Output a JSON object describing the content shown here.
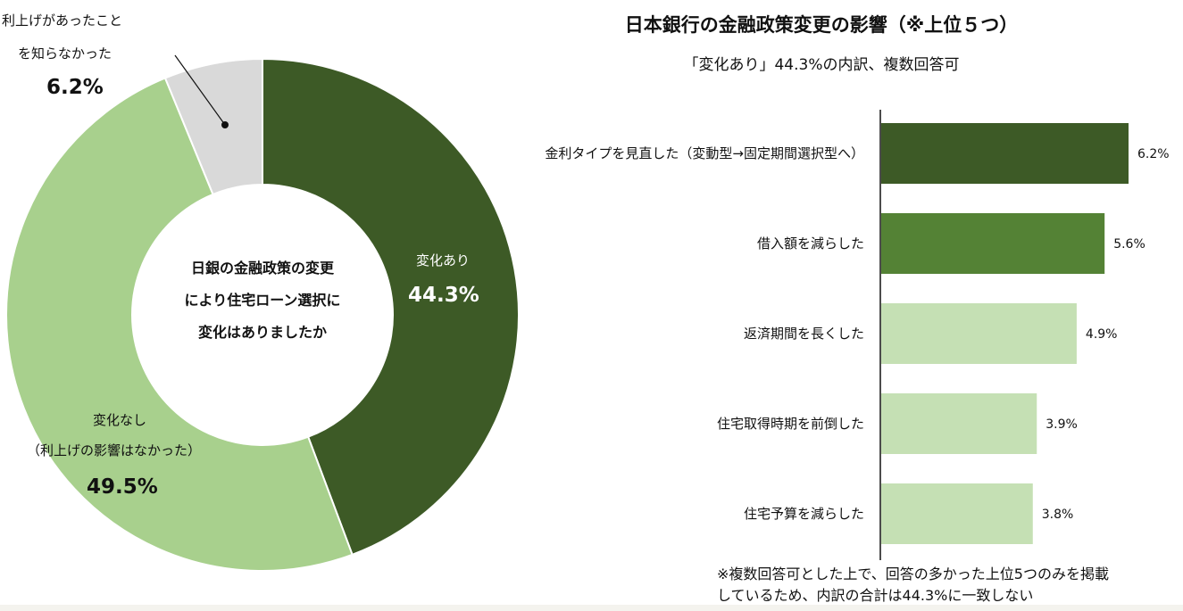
{
  "donut": {
    "center_lines": [
      "日銀の金融政策の変更",
      "により住宅ローン選択に",
      "変化はありましたか"
    ],
    "segments": [
      {
        "label": "変化あり",
        "value_text": "44.3%",
        "value": 44.3,
        "color": "#3d5a26"
      },
      {
        "label_lines": [
          "変化なし",
          "（利上げの影響はなかった）"
        ],
        "value_text": "49.5%",
        "value": 49.5,
        "color": "#a8d08d"
      },
      {
        "label_lines": [
          "利上げがあったこと",
          "を知らなかった"
        ],
        "value_text": "6.2%",
        "value": 6.2,
        "color": "#d9d9d9"
      }
    ]
  },
  "bars": {
    "title": "日本銀行の金融政策変更の影響（※上位５つ）",
    "subtitle": "「変化あり」44.3%の内訳、複数回答可",
    "footnote_lines": [
      "※複数回答可とした上で、回答の多かった上位5つのみを掲載",
      "しているため、内訳の合計は44.3%に一致しない"
    ]
  },
  "chart_data": [
    {
      "type": "pie",
      "title": "日銀の金融政策の変更により住宅ローン選択に変化はありましたか",
      "categories": [
        "変化あり",
        "変化なし（利上げの影響はなかった）",
        "利上げがあったことを知らなかった"
      ],
      "values": [
        44.3,
        49.5,
        6.2
      ],
      "unit": "%",
      "colors": [
        "#3d5a26",
        "#a8d08d",
        "#d9d9d9"
      ]
    },
    {
      "type": "bar",
      "orientation": "horizontal",
      "title": "日本銀行の金融政策変更の影響（※上位５つ）",
      "subtitle": "「変化あり」44.3%の内訳、複数回答可",
      "categories": [
        "金利タイプを見直した（変動型→固定期間選択型へ）",
        "借入額を減らした",
        "返済期間を長くした",
        "住宅取得時期を前倒した",
        "住宅予算を減らした"
      ],
      "values": [
        6.2,
        5.6,
        4.9,
        3.9,
        3.8
      ],
      "value_labels": [
        "6.2%",
        "5.6%",
        "4.9%",
        "3.9%",
        "3.8%"
      ],
      "colors": [
        "#3d5a26",
        "#548235",
        "#c5e0b4",
        "#c5e0b4",
        "#c5e0b4"
      ],
      "xlim": [
        0,
        6.9
      ]
    }
  ]
}
